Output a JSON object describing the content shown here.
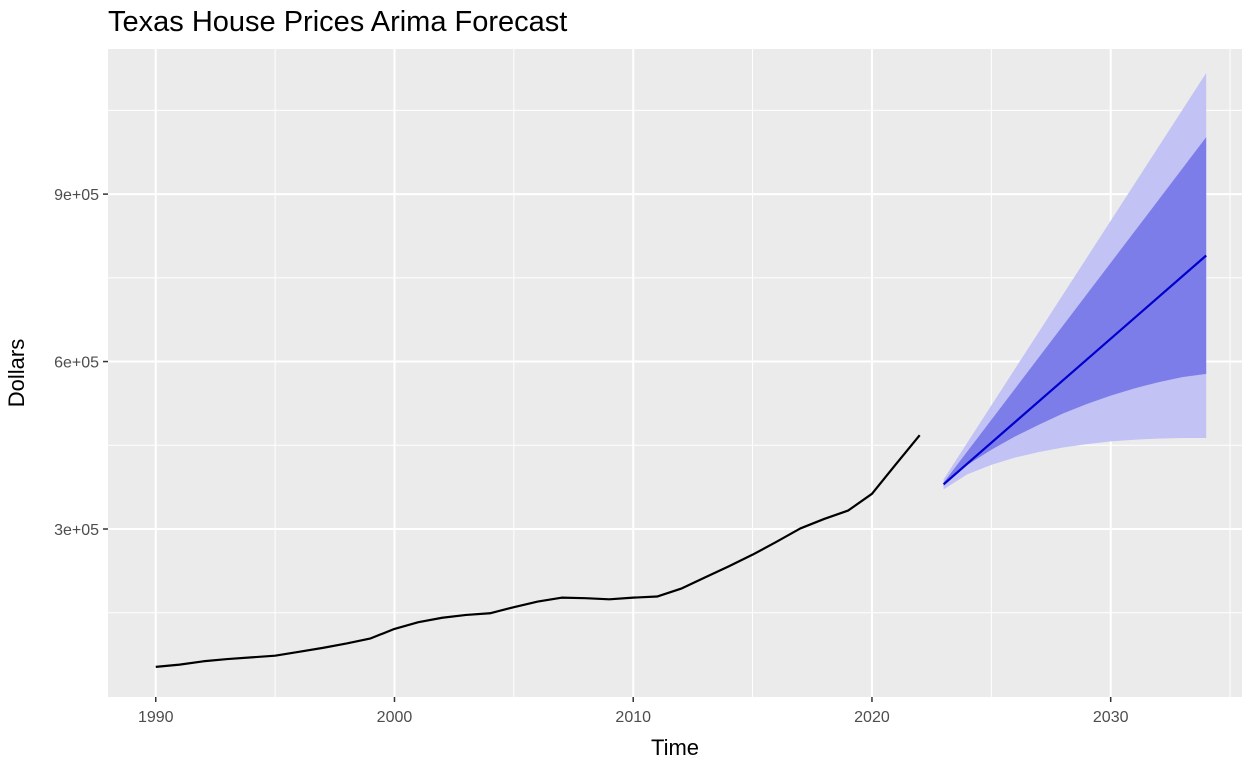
{
  "chart_data": {
    "type": "line",
    "title": "Texas House Prices Arima Forecast",
    "xlabel": "Time",
    "ylabel": "Dollars",
    "xlim": [
      1988,
      2035.5
    ],
    "ylim": [
      -1000,
      1160000
    ],
    "x_ticks": [
      1990,
      2000,
      2010,
      2020,
      2030
    ],
    "x_tick_labels": [
      "1990",
      "2000",
      "2010",
      "2020",
      "2030"
    ],
    "y_ticks": [
      300000,
      600000,
      900000
    ],
    "y_tick_labels": [
      "3e+05",
      "6e+05",
      "9e+05"
    ],
    "grid": true,
    "legend": "none",
    "colors": {
      "panel_bg": "#ebebeb",
      "grid": "#ffffff",
      "history_line": "#000000",
      "forecast_line": "#0000cc",
      "pi80_fill": "#7d7dea",
      "pi95_fill": "#c2c2f4"
    },
    "series": [
      {
        "x": [
          1990,
          1991,
          1992,
          1993,
          1994,
          1995,
          1996,
          1997,
          1998,
          1999,
          2000,
          2001,
          2002,
          2003,
          2004,
          2005,
          2006,
          2007,
          2008,
          2009,
          2010,
          2011,
          2012,
          2013,
          2014,
          2015,
          2016,
          2017,
          2018,
          2019,
          2020,
          2021,
          2022
        ],
        "values": [
          53000,
          57000,
          63000,
          67000,
          70000,
          73000,
          80000,
          87000,
          95000,
          104000,
          121000,
          133000,
          141000,
          146000,
          149000,
          160000,
          170000,
          177000,
          176000,
          174000,
          177000,
          179000,
          193000,
          213000,
          233000,
          254000,
          277000,
          301000,
          318000,
          333000,
          363000,
          416000,
          468000
        ]
      },
      {
        "type": "line",
        "x": [
          2023,
          2034
        ],
        "values": [
          380000,
          790000
        ],
        "lower_80": [
          377000,
          578000
        ],
        "upper_80": [
          383000,
          1002000
        ],
        "lower_95": [
          371000,
          463000
        ],
        "upper_95": [
          389000,
          1117000
        ],
        "band_lower_95": [
          [
            2023,
            371000
          ],
          [
            2024,
            398000
          ],
          [
            2025,
            415000
          ],
          [
            2026,
            428000
          ],
          [
            2027,
            438000
          ],
          [
            2028,
            446000
          ],
          [
            2029,
            452000
          ],
          [
            2030,
            457000
          ],
          [
            2031,
            460000
          ],
          [
            2032,
            462000
          ],
          [
            2033,
            463000
          ],
          [
            2034,
            463000
          ]
        ],
        "band_lower_80": [
          [
            2023,
            377000
          ],
          [
            2024,
            415000
          ],
          [
            2025,
            442000
          ],
          [
            2026,
            466000
          ],
          [
            2027,
            487000
          ],
          [
            2028,
            507000
          ],
          [
            2029,
            524000
          ],
          [
            2030,
            539000
          ],
          [
            2031,
            552000
          ],
          [
            2032,
            563000
          ],
          [
            2033,
            572000
          ],
          [
            2034,
            578000
          ]
        ]
      }
    ]
  }
}
